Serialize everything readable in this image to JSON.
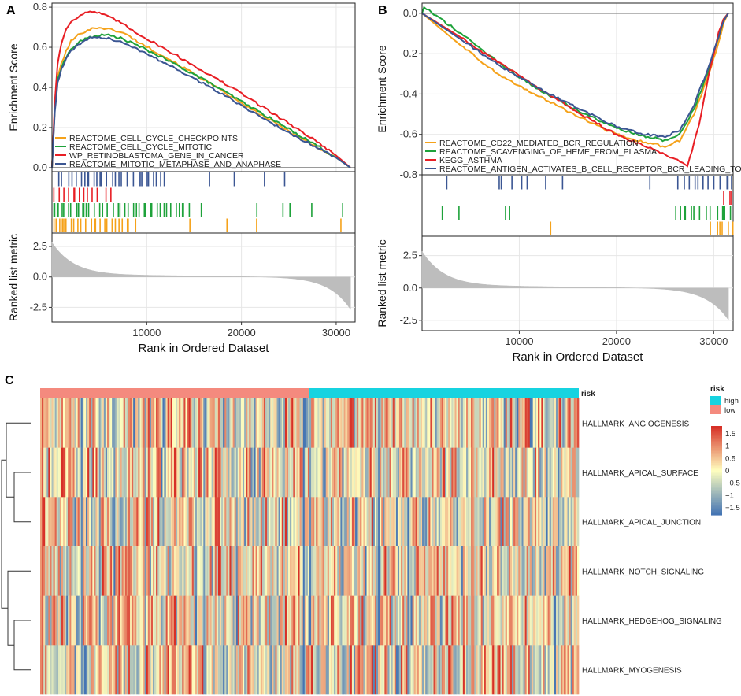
{
  "panel_labels": {
    "a": "A",
    "b": "B",
    "c": "C"
  },
  "colors": {
    "orange": "#f5a21a",
    "green": "#1ea23a",
    "red": "#e81f25",
    "blue": "#3b5693",
    "zero_line": "#8c8c8c",
    "bar": "#bdbdbd",
    "grid": "#e6e6e6",
    "high": "#17d3e0",
    "low": "#f48a7e",
    "scale_low": "#4575b4",
    "scale_mid": "#ffffbf",
    "scale_high": "#d73027"
  },
  "chart_data": [
    {
      "id": "gsea_a",
      "type": "line",
      "title": "",
      "ylabel_top": "Enrichment Score",
      "ylabel_bottom": "Ranked list metric",
      "xlabel": "Rank in Ordered Dataset",
      "xlim": [
        0,
        32000
      ],
      "xticks": [
        10000,
        20000,
        30000
      ],
      "xtick_labels": [
        "10000",
        "20000",
        "30000"
      ],
      "ylim": [
        -0.02,
        0.82
      ],
      "yticks": [
        0.0,
        0.2,
        0.4,
        0.6,
        0.8
      ],
      "ytick_labels": [
        "0.0",
        "0.2",
        "0.4",
        "0.6",
        "0.8"
      ],
      "metric_ylim": [
        -3.7,
        3.6
      ],
      "metric_yticks": [
        -2.5,
        0.0,
        2.5
      ],
      "metric_ytick_labels": [
        "-2.5",
        "0.0",
        "2.5"
      ],
      "legend_position": "bottom-left",
      "series": [
        {
          "name": "REACTOME_CELL_CYCLE_CHECKPOINTS",
          "color_key": "orange",
          "x": [
            0,
            300,
            600,
            1000,
            1500,
            2000,
            3000,
            4000,
            5000,
            6000,
            7000,
            8000,
            9000,
            12000,
            16000,
            20000,
            24000,
            28000,
            30000,
            31500
          ],
          "y": [
            0.0,
            0.3,
            0.45,
            0.52,
            0.58,
            0.63,
            0.67,
            0.69,
            0.7,
            0.69,
            0.68,
            0.66,
            0.63,
            0.55,
            0.44,
            0.32,
            0.21,
            0.1,
            0.05,
            0.0
          ]
        },
        {
          "name": "REACTOME_CELL_CYCLE_MITOTIC",
          "color_key": "green",
          "x": [
            0,
            300,
            600,
            1000,
            1500,
            2000,
            3000,
            4000,
            5000,
            6000,
            7000,
            8000,
            9000,
            12000,
            16000,
            20000,
            24000,
            28000,
            30000,
            31500
          ],
          "y": [
            0.0,
            0.3,
            0.44,
            0.5,
            0.55,
            0.59,
            0.63,
            0.65,
            0.66,
            0.66,
            0.65,
            0.63,
            0.61,
            0.54,
            0.44,
            0.33,
            0.22,
            0.11,
            0.05,
            0.0
          ]
        },
        {
          "name": "WP_RETINOBLASTOMA_GENE_IN_CANCER",
          "color_key": "red",
          "x": [
            0,
            300,
            600,
            1000,
            1500,
            2000,
            3000,
            4000,
            5000,
            6000,
            7000,
            8000,
            9000,
            12000,
            16000,
            20000,
            24000,
            28000,
            30000,
            31500
          ],
          "y": [
            0.0,
            0.33,
            0.52,
            0.62,
            0.69,
            0.73,
            0.76,
            0.78,
            0.77,
            0.75,
            0.73,
            0.7,
            0.67,
            0.59,
            0.48,
            0.37,
            0.25,
            0.13,
            0.06,
            0.0
          ]
        },
        {
          "name": "REACTOME_MITOTIC_METAPHASE_AND_ANAPHASE",
          "color_key": "blue",
          "x": [
            0,
            300,
            600,
            1000,
            1500,
            2000,
            3000,
            4000,
            5000,
            6000,
            7000,
            8000,
            9000,
            12000,
            16000,
            20000,
            24000,
            28000,
            30000,
            31500
          ],
          "y": [
            0.0,
            0.28,
            0.42,
            0.49,
            0.54,
            0.58,
            0.62,
            0.645,
            0.65,
            0.645,
            0.63,
            0.61,
            0.59,
            0.52,
            0.42,
            0.31,
            0.2,
            0.1,
            0.05,
            0.0
          ]
        }
      ]
    },
    {
      "id": "gsea_b",
      "type": "line",
      "title": "",
      "ylabel_top": "Enrichment Score",
      "ylabel_bottom": "Ranked list metric",
      "xlabel": "Rank in Ordered Dataset",
      "xlim": [
        0,
        32000
      ],
      "xticks": [
        10000,
        20000,
        30000
      ],
      "xtick_labels": [
        "10000",
        "20000",
        "30000"
      ],
      "ylim": [
        -0.8,
        0.05
      ],
      "yticks": [
        -0.8,
        -0.6,
        -0.4,
        -0.2,
        0.0
      ],
      "ytick_labels": [
        "-0.8",
        "-0.6",
        "-0.4",
        "-0.2",
        "0.0"
      ],
      "metric_ylim": [
        -3.3,
        4.0
      ],
      "metric_yticks": [
        -2.5,
        0.0,
        2.5
      ],
      "metric_ytick_labels": [
        "-2.5",
        "0.0",
        "2.5"
      ],
      "legend_position": "bottom-left",
      "series": [
        {
          "name": "REACTOME_CD22_MEDIATED_BCR_REGULATION",
          "color_key": "orange",
          "x": [
            0,
            4000,
            8000,
            12000,
            16000,
            20000,
            23000,
            25000,
            26500,
            28000,
            29500,
            30500,
            31000,
            31500
          ],
          "y": [
            0.0,
            -0.16,
            -0.31,
            -0.41,
            -0.51,
            -0.6,
            -0.64,
            -0.66,
            -0.63,
            -0.5,
            -0.3,
            -0.15,
            -0.05,
            0.0
          ]
        },
        {
          "name": "REACTOME_SCAVENGING_OF_HEME_FROM_PLASMA",
          "color_key": "green",
          "x": [
            0,
            200,
            4000,
            8000,
            12000,
            16000,
            20000,
            23000,
            25000,
            26500,
            28000,
            29500,
            30500,
            31000,
            31500
          ],
          "y": [
            0.0,
            0.03,
            -0.1,
            -0.25,
            -0.38,
            -0.48,
            -0.57,
            -0.61,
            -0.63,
            -0.6,
            -0.47,
            -0.28,
            -0.12,
            -0.03,
            0.0
          ]
        },
        {
          "name": "KEGG_ASTHMA",
          "color_key": "red",
          "x": [
            0,
            4000,
            8000,
            12000,
            16000,
            20000,
            24000,
            26000,
            27300,
            28500,
            29500,
            30500,
            31000,
            31500
          ],
          "y": [
            0.0,
            -0.12,
            -0.25,
            -0.37,
            -0.49,
            -0.6,
            -0.68,
            -0.72,
            -0.76,
            -0.55,
            -0.3,
            -0.1,
            -0.03,
            0.0
          ]
        },
        {
          "name": "REACTOME_ANTIGEN_ACTIVATES_B_CELL_RECEPTOR_BCR_LEADING_TO_",
          "color_key": "blue",
          "x": [
            0,
            4000,
            8000,
            12000,
            16000,
            20000,
            23000,
            25000,
            26500,
            28000,
            29500,
            30500,
            31000,
            31500
          ],
          "y": [
            0.0,
            -0.13,
            -0.26,
            -0.37,
            -0.47,
            -0.56,
            -0.6,
            -0.61,
            -0.58,
            -0.45,
            -0.26,
            -0.12,
            -0.04,
            0.0
          ]
        }
      ]
    },
    {
      "id": "heatmap_c",
      "type": "heatmap",
      "annotation_label": "risk",
      "legend_title_risk": "risk",
      "risk_levels": [
        "high",
        "low"
      ],
      "legend_values": [
        1.5,
        1,
        0.5,
        0,
        -0.5,
        -1,
        -1.5
      ],
      "legend_labels": [
        "1.5",
        "1",
        "0.5",
        "0",
        "−0.5",
        "−1",
        "−1.5"
      ],
      "value_range": [
        -1.8,
        1.8
      ],
      "n_samples_low": 165,
      "n_samples_high": 165,
      "rows": [
        "HALLMARK_ANGIOGENESIS",
        "HALLMARK_APICAL_SURFACE",
        "HALLMARK_APICAL_JUNCTION",
        "HALLMARK_NOTCH_SIGNALING",
        "HALLMARK_HEDGEHOG_SIGNALING",
        "HALLMARK_MYOGENESIS"
      ]
    }
  ]
}
